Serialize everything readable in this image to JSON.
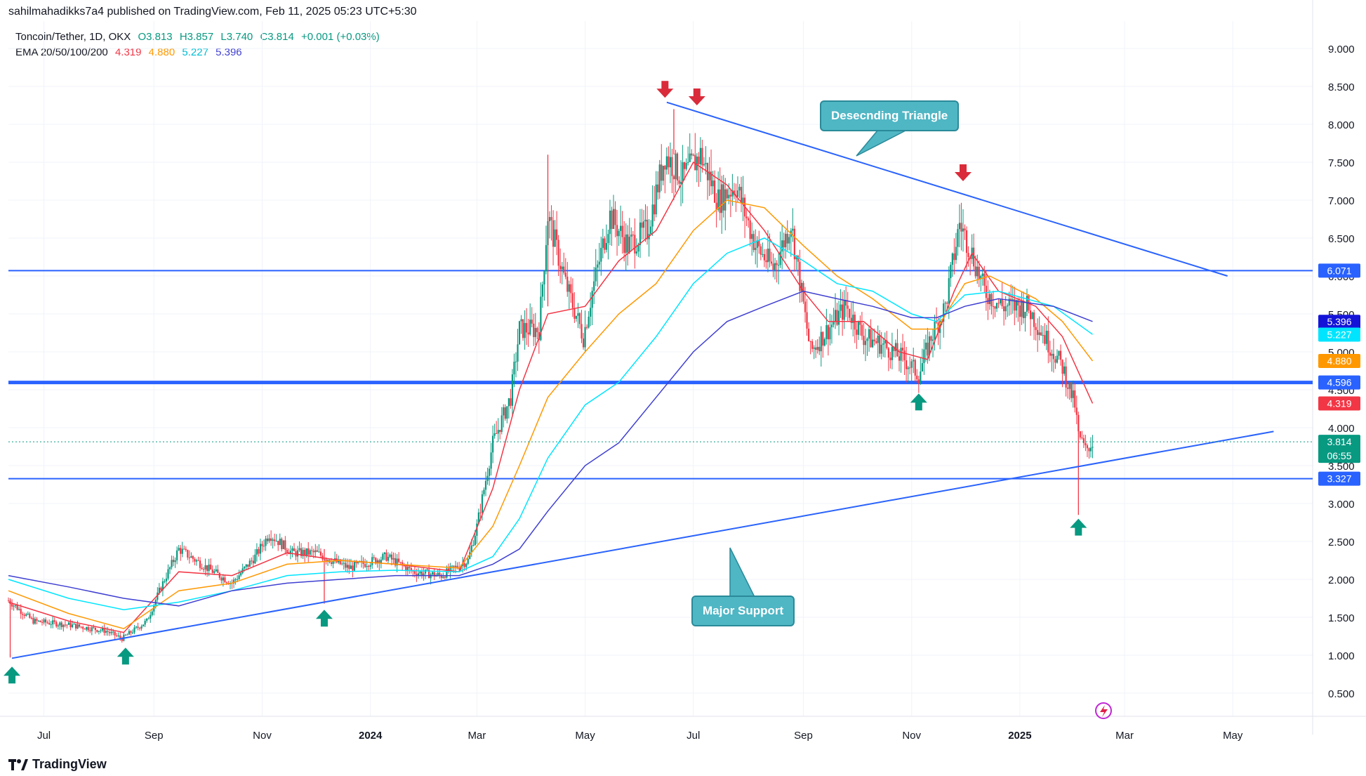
{
  "header": {
    "published_by": "sahilmahadikks7a4 published on TradingView.com, Feb 11, 2025 05:23 UTC+5:30"
  },
  "legend": {
    "symbol": "Toncoin/Tether, 1D, OKX",
    "open": "O3.813",
    "high": "H3.857",
    "low": "L3.740",
    "close": "C3.814",
    "change": "+0.001 (+0.03%)",
    "ema_label": "EMA 20/50/100/200",
    "ema20": "4.319",
    "ema50": "4.880",
    "ema100": "5.227",
    "ema200": "5.396"
  },
  "colors": {
    "ema20": "#f23645",
    "ema50": "#ff9800",
    "ema100": "#00e5ff",
    "ema200": "#3f3fd1",
    "trendline": "#2962ff",
    "up_candle": "#089981",
    "down_candle": "#f23645",
    "arrow_up": "#089981",
    "arrow_down": "#d92b3a",
    "callout": "#4fb6c4"
  },
  "annotations": {
    "triangle_label": "Desecnding Triangle",
    "support_label": "Major Support"
  },
  "footer": {
    "brand": "TradingView"
  },
  "chart_data": {
    "type": "candlestick",
    "y_axis": {
      "ticks": [
        "9.000",
        "8.500",
        "8.000",
        "7.500",
        "7.000",
        "6.500",
        "6.000",
        "5.500",
        "5.000",
        "4.500",
        "4.000",
        "3.500",
        "3.000",
        "2.500",
        "2.000",
        "1.500",
        "1.000",
        "0.500"
      ],
      "range": [
        0.2,
        9.3
      ]
    },
    "x_axis": {
      "ticks": [
        "Jul",
        "Sep",
        "Nov",
        "2024",
        "Mar",
        "May",
        "Jul",
        "Sep",
        "Nov",
        "2025",
        "Mar",
        "May"
      ],
      "range": [
        "2023-06-11",
        "2025-06-15"
      ]
    },
    "price_labels": [
      {
        "value": "6.071",
        "price": 6.071,
        "color": "#2962ff"
      },
      {
        "value": "5.396",
        "price": 5.396,
        "color": "#1414d9"
      },
      {
        "value": "5.227",
        "price": 5.227,
        "color": "#00e5ff"
      },
      {
        "value": "4.880",
        "price": 4.88,
        "color": "#ff9800"
      },
      {
        "value": "4.596",
        "price": 4.596,
        "color": "#2962ff"
      },
      {
        "value": "4.319",
        "price": 4.319,
        "color": "#f23645"
      },
      {
        "value": "3.814",
        "price": 3.814,
        "color": "#089981",
        "countdown": "06:55"
      },
      {
        "value": "3.327",
        "price": 3.327,
        "color": "#2962ff"
      }
    ],
    "horizontal_levels": [
      6.071,
      4.596,
      3.327
    ],
    "trendlines": [
      {
        "name": "Desecnding Triangle resistance",
        "from": {
          "date": "2024-06-16",
          "price": 8.29
        },
        "to": {
          "date": "2025-04-28",
          "price": 6.0
        }
      },
      {
        "name": "Major Support",
        "from": {
          "date": "2023-06-13",
          "price": 0.96
        },
        "to": {
          "date": "2025-05-24",
          "price": 3.95
        }
      }
    ],
    "last_price": 3.814,
    "price_path": [
      [
        "2023-06-11",
        1.72
      ],
      [
        "2023-06-25",
        1.45
      ],
      [
        "2023-07-15",
        1.4
      ],
      [
        "2023-08-05",
        1.32
      ],
      [
        "2023-08-14",
        1.22
      ],
      [
        "2023-08-28",
        1.45
      ],
      [
        "2023-09-05",
        1.9
      ],
      [
        "2023-09-15",
        2.4
      ],
      [
        "2023-10-01",
        2.15
      ],
      [
        "2023-10-15",
        1.95
      ],
      [
        "2023-10-28",
        2.3
      ],
      [
        "2023-11-05",
        2.6
      ],
      [
        "2023-11-18",
        2.35
      ],
      [
        "2023-12-01",
        2.35
      ],
      [
        "2023-12-20",
        2.15
      ],
      [
        "2024-01-10",
        2.3
      ],
      [
        "2024-01-25",
        2.1
      ],
      [
        "2024-02-10",
        2.05
      ],
      [
        "2024-02-25",
        2.25
      ],
      [
        "2024-03-01",
        2.7
      ],
      [
        "2024-03-10",
        3.8
      ],
      [
        "2024-03-20",
        4.4
      ],
      [
        "2024-03-25",
        5.3
      ],
      [
        "2024-04-05",
        5.3
      ],
      [
        "2024-04-10",
        6.8
      ],
      [
        "2024-04-20",
        5.9
      ],
      [
        "2024-04-30",
        5.2
      ],
      [
        "2024-05-05",
        5.8
      ],
      [
        "2024-05-15",
        6.8
      ],
      [
        "2024-05-25",
        6.4
      ],
      [
        "2024-06-05",
        6.6
      ],
      [
        "2024-06-15",
        7.6
      ],
      [
        "2024-06-25",
        7.3
      ],
      [
        "2024-07-05",
        7.6
      ],
      [
        "2024-07-15",
        7.0
      ],
      [
        "2024-07-25",
        7.2
      ],
      [
        "2024-08-05",
        6.4
      ],
      [
        "2024-08-15",
        6.1
      ],
      [
        "2024-08-25",
        6.7
      ],
      [
        "2024-09-05",
        5.0
      ],
      [
        "2024-09-15",
        5.3
      ],
      [
        "2024-09-25",
        5.6
      ],
      [
        "2024-10-05",
        5.2
      ],
      [
        "2024-10-15",
        5.1
      ],
      [
        "2024-10-28",
        4.9
      ],
      [
        "2024-11-05",
        4.7
      ],
      [
        "2024-11-12",
        5.2
      ],
      [
        "2024-11-20",
        5.6
      ],
      [
        "2024-11-28",
        6.7
      ],
      [
        "2024-12-05",
        6.3
      ],
      [
        "2024-12-12",
        5.8
      ],
      [
        "2024-12-22",
        5.6
      ],
      [
        "2025-01-05",
        5.6
      ],
      [
        "2025-01-15",
        5.2
      ],
      [
        "2025-01-25",
        4.8
      ],
      [
        "2025-02-01",
        4.3
      ],
      [
        "2025-02-03",
        3.9
      ],
      [
        "2025-02-07",
        3.7
      ],
      [
        "2025-02-11",
        3.81
      ]
    ],
    "ema_paths": {
      "ema20": [
        [
          "2023-06-11",
          1.7
        ],
        [
          "2023-07-15",
          1.45
        ],
        [
          "2023-08-15",
          1.3
        ],
        [
          "2023-09-15",
          2.1
        ],
        [
          "2023-10-15",
          2.05
        ],
        [
          "2023-11-15",
          2.35
        ],
        [
          "2023-12-15",
          2.25
        ],
        [
          "2024-01-15",
          2.2
        ],
        [
          "2024-02-20",
          2.1
        ],
        [
          "2024-03-10",
          3.2
        ],
        [
          "2024-03-25",
          4.5
        ],
        [
          "2024-04-10",
          5.5
        ],
        [
          "2024-05-01",
          5.6
        ],
        [
          "2024-05-20",
          6.2
        ],
        [
          "2024-06-10",
          6.6
        ],
        [
          "2024-07-01",
          7.5
        ],
        [
          "2024-07-20",
          7.2
        ],
        [
          "2024-08-10",
          6.6
        ],
        [
          "2024-09-01",
          5.8
        ],
        [
          "2024-09-15",
          5.4
        ],
        [
          "2024-10-05",
          5.4
        ],
        [
          "2024-10-25",
          5.0
        ],
        [
          "2024-11-10",
          4.9
        ],
        [
          "2024-11-25",
          5.8
        ],
        [
          "2024-12-05",
          6.3
        ],
        [
          "2024-12-20",
          5.8
        ],
        [
          "2025-01-10",
          5.6
        ],
        [
          "2025-01-25",
          5.2
        ],
        [
          "2025-02-11",
          4.32
        ]
      ],
      "ema50": [
        [
          "2023-06-11",
          1.85
        ],
        [
          "2023-07-15",
          1.55
        ],
        [
          "2023-08-15",
          1.35
        ],
        [
          "2023-09-15",
          1.85
        ],
        [
          "2023-10-15",
          1.95
        ],
        [
          "2023-11-15",
          2.2
        ],
        [
          "2023-12-15",
          2.25
        ],
        [
          "2024-01-15",
          2.2
        ],
        [
          "2024-02-20",
          2.15
        ],
        [
          "2024-03-10",
          2.7
        ],
        [
          "2024-03-25",
          3.5
        ],
        [
          "2024-04-10",
          4.4
        ],
        [
          "2024-05-01",
          5.0
        ],
        [
          "2024-05-20",
          5.5
        ],
        [
          "2024-06-10",
          5.9
        ],
        [
          "2024-07-01",
          6.6
        ],
        [
          "2024-07-20",
          7.0
        ],
        [
          "2024-08-10",
          6.9
        ],
        [
          "2024-09-01",
          6.4
        ],
        [
          "2024-09-20",
          6.0
        ],
        [
          "2024-10-10",
          5.7
        ],
        [
          "2024-11-01",
          5.3
        ],
        [
          "2024-11-15",
          5.3
        ],
        [
          "2024-12-01",
          5.9
        ],
        [
          "2024-12-15",
          6.0
        ],
        [
          "2025-01-10",
          5.7
        ],
        [
          "2025-01-25",
          5.4
        ],
        [
          "2025-02-11",
          4.88
        ]
      ],
      "ema100": [
        [
          "2023-06-11",
          2.0
        ],
        [
          "2023-07-15",
          1.75
        ],
        [
          "2023-08-15",
          1.6
        ],
        [
          "2023-09-15",
          1.7
        ],
        [
          "2023-10-15",
          1.85
        ],
        [
          "2023-11-15",
          2.05
        ],
        [
          "2023-12-15",
          2.1
        ],
        [
          "2024-01-15",
          2.12
        ],
        [
          "2024-02-20",
          2.1
        ],
        [
          "2024-03-10",
          2.3
        ],
        [
          "2024-03-25",
          2.8
        ],
        [
          "2024-04-10",
          3.6
        ],
        [
          "2024-05-01",
          4.3
        ],
        [
          "2024-05-20",
          4.6
        ],
        [
          "2024-06-10",
          5.2
        ],
        [
          "2024-07-01",
          5.9
        ],
        [
          "2024-07-20",
          6.3
        ],
        [
          "2024-08-10",
          6.5
        ],
        [
          "2024-09-01",
          6.2
        ],
        [
          "2024-09-20",
          5.9
        ],
        [
          "2024-10-10",
          5.8
        ],
        [
          "2024-11-01",
          5.5
        ],
        [
          "2024-11-15",
          5.4
        ],
        [
          "2024-12-01",
          5.75
        ],
        [
          "2024-12-20",
          5.8
        ],
        [
          "2025-01-20",
          5.6
        ],
        [
          "2025-02-11",
          5.23
        ]
      ],
      "ema200": [
        [
          "2023-06-11",
          2.05
        ],
        [
          "2023-07-15",
          1.9
        ],
        [
          "2023-08-15",
          1.75
        ],
        [
          "2023-09-15",
          1.65
        ],
        [
          "2023-10-15",
          1.85
        ],
        [
          "2023-11-15",
          1.95
        ],
        [
          "2023-12-15",
          2.0
        ],
        [
          "2024-01-15",
          2.05
        ],
        [
          "2024-02-20",
          2.05
        ],
        [
          "2024-03-10",
          2.2
        ],
        [
          "2024-03-25",
          2.4
        ],
        [
          "2024-04-10",
          2.9
        ],
        [
          "2024-05-01",
          3.5
        ],
        [
          "2024-05-20",
          3.8
        ],
        [
          "2024-06-10",
          4.4
        ],
        [
          "2024-07-01",
          5.0
        ],
        [
          "2024-07-20",
          5.4
        ],
        [
          "2024-08-10",
          5.6
        ],
        [
          "2024-09-01",
          5.8
        ],
        [
          "2024-09-20",
          5.7
        ],
        [
          "2024-10-10",
          5.6
        ],
        [
          "2024-11-01",
          5.45
        ],
        [
          "2024-11-15",
          5.45
        ],
        [
          "2024-12-01",
          5.6
        ],
        [
          "2024-12-20",
          5.7
        ],
        [
          "2025-01-20",
          5.6
        ],
        [
          "2025-02-11",
          5.4
        ]
      ]
    },
    "arrows_up": [
      {
        "date": "2023-06-13",
        "price": 0.85
      },
      {
        "date": "2023-08-16",
        "price": 1.1
      },
      {
        "date": "2023-12-06",
        "price": 1.6
      },
      {
        "date": "2024-11-05",
        "price": 4.45
      },
      {
        "date": "2025-02-03",
        "price": 2.8
      }
    ],
    "arrows_down": [
      {
        "date": "2024-06-15",
        "price": 8.35
      },
      {
        "date": "2024-07-03",
        "price": 8.25
      },
      {
        "date": "2024-11-30",
        "price": 7.25
      }
    ],
    "grid": true
  }
}
